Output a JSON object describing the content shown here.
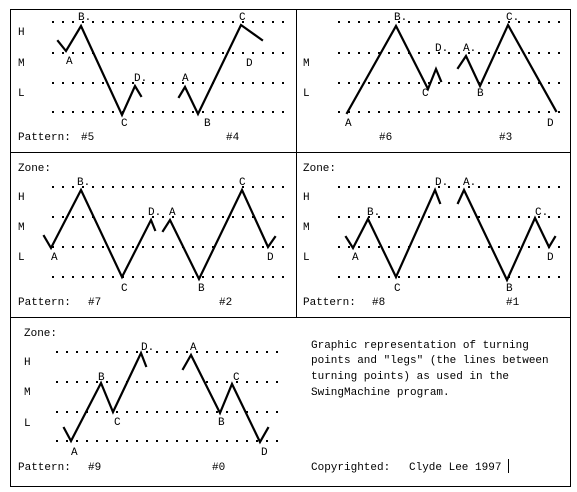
{
  "panels": [
    {
      "id": "top-left",
      "zone_label": "",
      "row_labels": [
        "H",
        "M",
        "L"
      ],
      "pattern_label": "Pattern:",
      "patterns": [
        "#5",
        "#4"
      ],
      "point_labels": [
        "A",
        "B.",
        "C",
        "D.",
        "A",
        "B",
        "C",
        "D"
      ]
    },
    {
      "id": "top-right",
      "zone_label": "",
      "row_labels": [
        "M",
        "L"
      ],
      "pattern_label": "",
      "patterns": [
        "#6",
        "#3"
      ],
      "point_labels": [
        "A",
        "B.",
        "C",
        "D.",
        "A.",
        "B",
        "C.",
        "D"
      ]
    },
    {
      "id": "middle-left",
      "zone_label": "Zone:",
      "row_labels": [
        "H",
        "M",
        "L"
      ],
      "pattern_label": "Pattern:",
      "patterns": [
        "#7",
        "#2"
      ],
      "point_labels": [
        "A",
        "B.",
        "C",
        "D.",
        "A",
        "B",
        "C",
        "D"
      ]
    },
    {
      "id": "middle-right",
      "zone_label": "Zone:",
      "row_labels": [
        "H",
        "M",
        "L"
      ],
      "pattern_label": "Pattern:",
      "patterns": [
        "#8",
        "#1"
      ],
      "point_labels": [
        "A",
        "B.",
        "C",
        "D.",
        "A.",
        "B",
        "C.",
        "D"
      ]
    },
    {
      "id": "bottom",
      "zone_label": "Zone:",
      "row_labels": [
        "H",
        "M",
        "L"
      ],
      "pattern_label": "Pattern:",
      "patterns": [
        "#9",
        "#0"
      ],
      "point_labels": [
        "A",
        "B",
        "C",
        "D.",
        "A",
        "B",
        "C",
        "D"
      ]
    }
  ],
  "description_lines": [
    "Graphic representation of turning",
    "points and \"legs\" (the lines between",
    "turning points) as used in the",
    "SwingMachine program."
  ],
  "copyright_label": "Copyrighted:",
  "copyright_author": "Clyde Lee 1997"
}
